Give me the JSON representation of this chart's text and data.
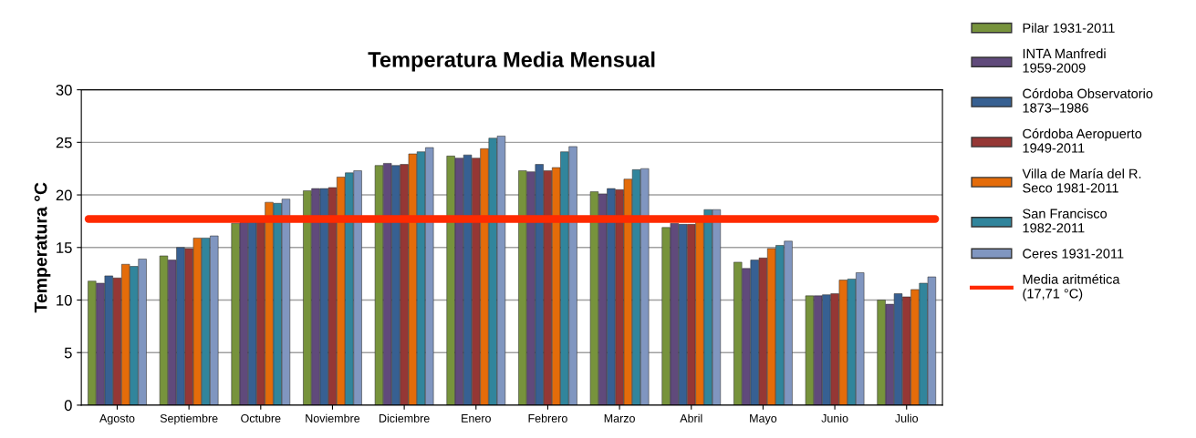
{
  "chart_data": {
    "type": "bar",
    "title": "Temperatura Media Mensual",
    "ylabel": "Temperatura °C",
    "categories": [
      "Agosto",
      "Septiembre",
      "Octubre",
      "Noviembre",
      "Diciembre",
      "Enero",
      "Febrero",
      "Marzo",
      "Abril",
      "Mayo",
      "Junio",
      "Julio"
    ],
    "series": [
      {
        "name": "Pilar 1931-2011",
        "color": "#77933c",
        "values": [
          11.8,
          14.2,
          17.3,
          20.4,
          22.8,
          23.7,
          22.3,
          20.3,
          16.9,
          13.6,
          10.4,
          10.0
        ]
      },
      {
        "name": "INTA Manfredi 1959-2009",
        "color": "#604a7b",
        "values": [
          11.6,
          13.8,
          17.6,
          20.6,
          23.0,
          23.5,
          22.2,
          20.1,
          17.3,
          13.0,
          10.4,
          9.6
        ]
      },
      {
        "name": "Córdoba Observatorio 1873–1986",
        "color": "#376092",
        "values": [
          12.3,
          15.0,
          17.6,
          20.6,
          22.8,
          23.8,
          22.9,
          20.6,
          17.2,
          13.8,
          10.5,
          10.6
        ]
      },
      {
        "name": "Córdoba Aeropuerto 1949-2011",
        "color": "#953735",
        "values": [
          12.1,
          14.9,
          17.6,
          20.7,
          22.9,
          23.5,
          22.3,
          20.5,
          17.2,
          14.0,
          10.6,
          10.3
        ]
      },
      {
        "name": "Villa de María del R. Seco 1981-2011",
        "color": "#e46c0a",
        "values": [
          13.4,
          15.9,
          19.3,
          21.7,
          23.9,
          24.4,
          22.6,
          21.5,
          17.6,
          14.9,
          11.9,
          11.0
        ]
      },
      {
        "name": "San Francisco 1982-2011",
        "color": "#31859c",
        "values": [
          13.2,
          15.9,
          19.2,
          22.1,
          24.1,
          25.4,
          24.1,
          22.4,
          18.6,
          15.2,
          12.0,
          11.6
        ]
      },
      {
        "name": "Ceres 1931-2011",
        "color": "#8096c0",
        "values": [
          13.9,
          16.1,
          19.6,
          22.3,
          24.5,
          25.6,
          24.6,
          22.5,
          18.6,
          15.6,
          12.6,
          12.2
        ]
      }
    ],
    "ref_lines": [
      {
        "axis": "y",
        "value": 17.71,
        "label": "Media aritmética (17,71 °C)",
        "color": "#ff2a00",
        "line_style": "solid"
      }
    ],
    "ylim": [
      0,
      30
    ],
    "yticks": [
      0,
      5,
      10,
      15,
      20,
      25,
      30
    ],
    "grid": "y",
    "legend": "right"
  }
}
